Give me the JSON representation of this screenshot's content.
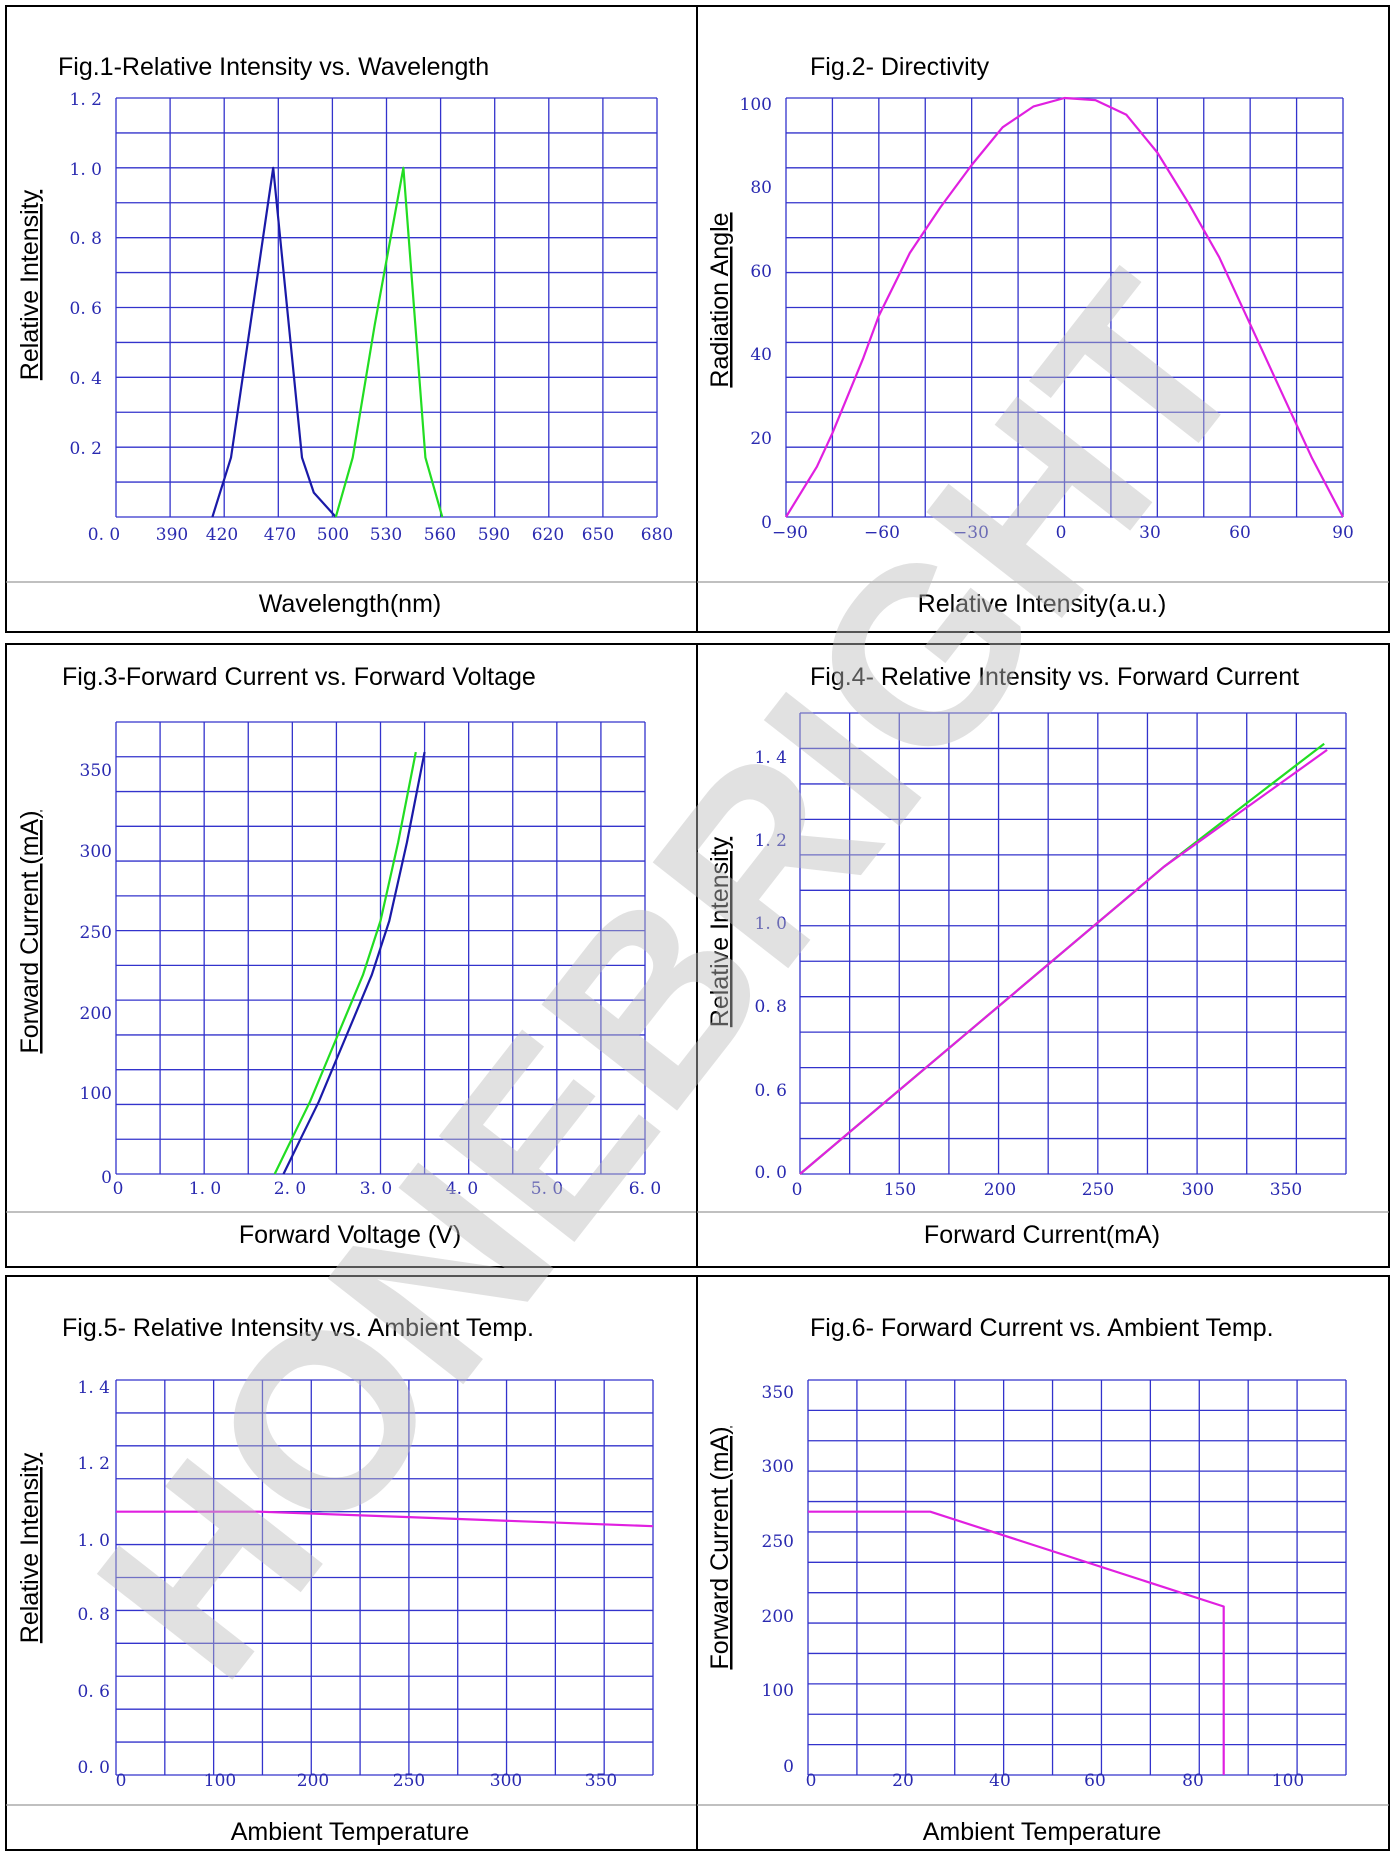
{
  "watermark": "HONEBRIGHT",
  "colors": {
    "grid": "#3333cc",
    "tick": "#2a2ab0",
    "blue_series": "#1a1aa8",
    "green_series": "#22dd22",
    "magenta_series": "#e020e0"
  },
  "chart_data": [
    {
      "id": "fig1",
      "type": "line",
      "title": "Fig.1-Relative Intensity vs. Wavelength",
      "ylabel": "Relative Intensity",
      "xlabel_bottom": "Wavelength(nm)",
      "xlim": [
        360,
        680
      ],
      "ylim": [
        0,
        1.2
      ],
      "x_ticks": [
        "0. 0",
        "390",
        "420",
        "470",
        "500",
        "530",
        "560",
        "590",
        "620",
        "650",
        "680"
      ],
      "y_ticks": [
        "1. 2",
        "1. 0",
        "0. 8",
        "0. 6",
        "0. 4",
        "0. 2"
      ],
      "series": [
        {
          "color": "blue",
          "x": [
            417,
            428,
            453,
            470,
            477,
            490
          ],
          "y": [
            0,
            0.17,
            1.0,
            0.17,
            0.07,
            0
          ]
        },
        {
          "color": "green",
          "x": [
            490,
            500,
            513,
            530,
            543,
            553
          ],
          "y": [
            0,
            0.17,
            0.55,
            1.0,
            0.17,
            0
          ]
        }
      ]
    },
    {
      "id": "fig2",
      "type": "line",
      "title": "Fig.2- Directivity",
      "ylabel": "Radiation Angle",
      "xlabel_bottom": "Relative Intensity(a.u.)",
      "xlim": [
        -90,
        90
      ],
      "ylim": [
        0,
        100
      ],
      "x_ticks": [
        "−90",
        "−60",
        "−30",
        "0",
        "30",
        "60",
        "90"
      ],
      "y_ticks": [
        "100",
        "80",
        "60",
        "40",
        "20",
        "0"
      ],
      "series": [
        {
          "color": "magenta",
          "x": [
            -90,
            -80,
            -75,
            -65,
            -60,
            -50,
            -40,
            -30,
            -20,
            -10,
            0,
            10,
            20,
            30,
            40,
            50,
            60,
            70,
            75,
            80,
            90
          ],
          "y": [
            0,
            12,
            20,
            38,
            48,
            63,
            74,
            84,
            93,
            98,
            100,
            99.5,
            96,
            87,
            75,
            62,
            46,
            30,
            22,
            14,
            0
          ]
        }
      ]
    },
    {
      "id": "fig3",
      "type": "line",
      "title": "Fig.3-Forward Current vs. Forward Voltage",
      "ylabel": "Forward Current (mA)",
      "xlabel_bottom": "Forward Voltage (V)",
      "xlim": [
        0,
        6.0
      ],
      "ylim": [
        0,
        375
      ],
      "x_ticks": [
        "0",
        "1. 0",
        "2. 0",
        "3. 0",
        "4. 0",
        "5. 0",
        "6. 0"
      ],
      "y_ticks": [
        "350",
        "300",
        "250",
        "200",
        "100",
        "0"
      ],
      "series": [
        {
          "color": "green",
          "x": [
            1.8,
            2.0,
            2.2,
            2.4,
            2.6,
            2.8,
            3.0,
            3.2,
            3.4
          ],
          "y": [
            0,
            30,
            60,
            95,
            130,
            165,
            210,
            275,
            350
          ]
        },
        {
          "color": "blue",
          "x": [
            1.9,
            2.1,
            2.3,
            2.5,
            2.7,
            2.9,
            3.1,
            3.3,
            3.5
          ],
          "y": [
            0,
            30,
            60,
            95,
            130,
            165,
            210,
            275,
            350
          ]
        }
      ]
    },
    {
      "id": "fig4",
      "type": "line",
      "title": "Fig.4- Relative Intensity vs. Forward Current",
      "ylabel": "Relative Intensity",
      "xlabel_bottom": "Forward Current(mA)",
      "xlim": [
        0,
        375
      ],
      "ylim": [
        0,
        1.5
      ],
      "x_ticks": [
        "0",
        "150",
        "200",
        "250",
        "300",
        "350"
      ],
      "y_ticks": [
        "1. 4",
        "1. 2",
        "1. 0",
        "0. 8",
        "0. 6",
        "0. 0"
      ],
      "series": [
        {
          "color": "green",
          "x": [
            0,
            125,
            250,
            360
          ],
          "y": [
            0,
            0.5,
            1.0,
            1.4
          ]
        },
        {
          "color": "magenta",
          "x": [
            0,
            125,
            250,
            362
          ],
          "y": [
            0,
            0.5,
            1.0,
            1.38
          ]
        }
      ]
    },
    {
      "id": "fig5",
      "type": "line",
      "title": "Fig.5- Relative Intensity vs. Ambient Temp.",
      "ylabel": "Relative Intensity",
      "xlabel_bottom": "Ambient Temperature",
      "xlim": [
        0,
        375
      ],
      "ylim": [
        0,
        1.5
      ],
      "x_ticks": [
        "0",
        "100",
        "200",
        "250",
        "300",
        "350"
      ],
      "y_ticks": [
        "1. 4",
        "1. 2",
        "1. 0",
        "0. 8",
        "0. 6",
        "0. 0"
      ],
      "series": [
        {
          "color": "magenta",
          "x": [
            0,
            100,
            200,
            300,
            375
          ],
          "y": [
            1.0,
            1.0,
            0.98,
            0.96,
            0.945
          ]
        }
      ]
    },
    {
      "id": "fig6",
      "type": "line",
      "title": "Fig.6- Forward Current vs. Ambient Temp.",
      "ylabel": "Forward Current (mA)",
      "xlabel_bottom": "Ambient Temperature",
      "xlim": [
        0,
        110
      ],
      "ylim": [
        0,
        375
      ],
      "x_ticks": [
        "0",
        "20",
        "40",
        "60",
        "80",
        "100"
      ],
      "y_ticks": [
        "350",
        "300",
        "250",
        "200",
        "100",
        "0"
      ],
      "series": [
        {
          "color": "magenta",
          "x": [
            0,
            25,
            85,
            85
          ],
          "y": [
            250,
            250,
            160,
            0
          ]
        }
      ]
    }
  ]
}
